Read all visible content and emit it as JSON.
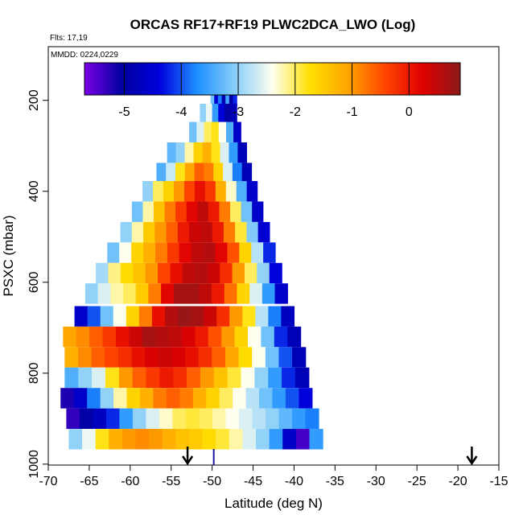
{
  "chart_data": {
    "type": "heatmap",
    "title": "ORCAS RF17+RF19 PLWC2DCA_LWO (Log)",
    "flights_label": "Flts: 17,19",
    "mmdd_label": "MMDD: 0224,0229",
    "xlabel": "Latitude (deg N)",
    "ylabel": "PSXC (mbar)",
    "xlim": [
      -70,
      -15
    ],
    "ylim": [
      1000,
      100
    ],
    "xticks": [
      "-70",
      "-65",
      "-60",
      "-55",
      "-50",
      "-45",
      "-40",
      "-35",
      "-30",
      "-25",
      "-20",
      "-15"
    ],
    "yticks": [
      "200",
      "400",
      "600",
      "800",
      "1000"
    ],
    "colorbar": {
      "range": [
        -5.7,
        0.9
      ],
      "ticks": [
        "-5",
        "-4",
        "-3",
        "-2",
        "-1",
        "0"
      ],
      "colors": [
        "#7a00e6",
        "#0000a0",
        "#0000dd",
        "#1e90ff",
        "#87cefa",
        "#fffff0",
        "#ffe000",
        "#ffa500",
        "#ff4500",
        "#e00000",
        "#8b1a1a"
      ]
    },
    "arrows_lat": [
      -53,
      -18.3
    ],
    "marker_lat": -49.8,
    "bands": [
      {
        "p": 190,
        "lat_min": -50.2,
        "lat_max": -47.0,
        "values": [
          -3.2,
          -4.5,
          -3.8,
          -4.8,
          -3.5,
          -5.0,
          -4.2
        ]
      },
      {
        "p": 230,
        "lat_min": -51.5,
        "lat_max": -47.0,
        "values": [
          -3.0,
          -2.5,
          -3.6,
          -4.4,
          -5.0,
          -4.8
        ]
      },
      {
        "p": 270,
        "lat_min": -52.8,
        "lat_max": -46.5,
        "values": [
          -3.2,
          -2.6,
          -2.0,
          -1.8,
          -2.4,
          -3.4,
          -4.6
        ]
      },
      {
        "p": 315,
        "lat_min": -55.5,
        "lat_max": -45.8,
        "values": [
          -3.3,
          -3.0,
          -2.2,
          -1.6,
          -1.2,
          -1.8,
          -2.6,
          -3.6,
          -4.8
        ]
      },
      {
        "p": 360,
        "lat_min": -56.8,
        "lat_max": -45.2,
        "values": [
          -3.4,
          -2.7,
          -1.8,
          -1.1,
          -0.6,
          -0.8,
          -1.6,
          -2.6,
          -3.8,
          -4.8
        ]
      },
      {
        "p": 400,
        "lat_min": -58.5,
        "lat_max": -44.5,
        "values": [
          -3.0,
          -2.0,
          -1.6,
          -1.0,
          -0.4,
          0.1,
          -0.3,
          -1.2,
          -2.3,
          -3.4,
          -4.6
        ]
      },
      {
        "p": 445,
        "lat_min": -59.8,
        "lat_max": -43.8,
        "values": [
          -3.2,
          -2.2,
          -1.4,
          -0.8,
          -0.3,
          0.2,
          0.5,
          0.0,
          -0.8,
          -2.0,
          -3.2,
          -4.6
        ]
      },
      {
        "p": 490,
        "lat_min": -61.2,
        "lat_max": -43.0,
        "values": [
          -3.0,
          -2.2,
          -1.5,
          -1.0,
          -0.6,
          0.0,
          0.4,
          0.5,
          0.0,
          -0.8,
          -1.9,
          -3.1,
          -4.5
        ]
      },
      {
        "p": 535,
        "lat_min": -62.8,
        "lat_max": -42.3,
        "values": [
          -3.2,
          -2.4,
          -1.6,
          -1.2,
          -0.8,
          -0.3,
          0.2,
          0.5,
          0.6,
          0.2,
          -0.5,
          -1.6,
          -2.8,
          -4.2
        ]
      },
      {
        "p": 580,
        "lat_min": -64.2,
        "lat_max": -41.5,
        "values": [
          -2.9,
          -2.1,
          -1.7,
          -1.4,
          -1.0,
          -0.4,
          0.1,
          0.5,
          0.6,
          0.4,
          -0.2,
          -1.0,
          -2.0,
          -3.0,
          -4.4
        ]
      },
      {
        "p": 625,
        "lat_min": -65.5,
        "lat_max": -40.8,
        "values": [
          -3.0,
          -2.6,
          -2.2,
          -2.0,
          -1.5,
          -0.8,
          0.2,
          0.7,
          0.7,
          0.5,
          0.0,
          -0.7,
          -1.6,
          -2.6,
          -3.6,
          -4.6
        ]
      },
      {
        "p": 675,
        "lat_min": -66.8,
        "lat_max": -40.0,
        "values": [
          -4.6,
          -4.0,
          -3.2,
          -2.4,
          -1.6,
          -0.8,
          0.1,
          0.6,
          0.8,
          0.7,
          0.4,
          -0.2,
          -1.0,
          -1.8,
          -2.8,
          -3.8,
          -4.7
        ]
      },
      {
        "p": 720,
        "lat_min": -68.2,
        "lat_max": -39.2,
        "values": [
          -1.1,
          -0.9,
          -0.6,
          -0.3,
          0.1,
          0.4,
          0.7,
          0.6,
          0.5,
          0.3,
          0.0,
          -0.5,
          -1.0,
          -1.6,
          -2.4,
          -3.2,
          -4.2,
          -4.8
        ]
      },
      {
        "p": 765,
        "lat_min": -68.0,
        "lat_max": -38.6,
        "values": [
          -1.2,
          -0.9,
          -0.6,
          -0.4,
          -0.2,
          0.1,
          0.3,
          0.4,
          0.3,
          0.1,
          -0.2,
          -0.6,
          -1.1,
          -1.7,
          -2.4,
          -3.2,
          -4.0,
          -4.8
        ]
      },
      {
        "p": 810,
        "lat_min": -68.0,
        "lat_max": -38.2,
        "values": [
          -3.4,
          -3.0,
          -2.6,
          -1.8,
          -1.0,
          -0.6,
          -0.3,
          0.0,
          -0.2,
          -0.6,
          -1.0,
          -1.4,
          -1.9,
          -2.4,
          -3.0,
          -3.6,
          -4.2,
          -4.8
        ]
      },
      {
        "p": 855,
        "lat_min": -68.5,
        "lat_max": -37.8,
        "values": [
          -5.2,
          -4.6,
          -3.8,
          -3.0,
          -2.2,
          -1.6,
          -1.2,
          -0.8,
          -0.6,
          -0.8,
          -1.2,
          -1.6,
          -2.0,
          -2.4,
          -2.8,
          -3.2,
          -3.6,
          -4.0,
          -4.4
        ]
      },
      {
        "p": 900,
        "lat_min": -67.8,
        "lat_max": -37.0,
        "values": [
          -5.3,
          -5.0,
          -4.7,
          -4.2,
          -3.6,
          -3.0,
          -2.6,
          -2.3,
          -2.0,
          -1.9,
          -2.0,
          -2.2,
          -2.4,
          -2.6,
          -2.8,
          -3.0,
          -3.3,
          -3.6,
          -3.8
        ]
      },
      {
        "p": 945,
        "lat_min": -67.5,
        "lat_max": -36.5,
        "values": [
          -3.0,
          -2.5,
          -1.8,
          -1.2,
          -1.0,
          -0.9,
          -1.0,
          -1.2,
          -1.4,
          -1.5,
          -1.7,
          -1.9,
          -2.2,
          -2.6,
          -3.0,
          -3.6,
          -4.6,
          -5.4,
          -3.6
        ]
      }
    ]
  }
}
